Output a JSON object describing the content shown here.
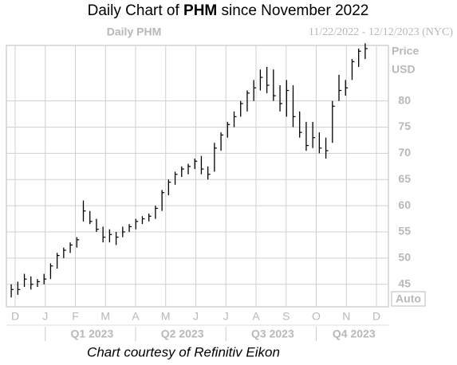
{
  "chart_data": {
    "type": "ohlc",
    "title_prefix": "Daily Chart of ",
    "ticker": "PHM",
    "title_suffix": " since November 2022",
    "panel_title": "Daily PHM",
    "date_range": "11/22/2022 - 12/12/2023 (NYC)",
    "y_label_1": "Price",
    "y_label_2": "USD",
    "scale_button": "Auto",
    "footer": "Chart courtesy of Refinitiv Eikon",
    "months": [
      "D",
      "J",
      "F",
      "M",
      "A",
      "M",
      "J",
      "J",
      "A",
      "S",
      "O",
      "N",
      "D"
    ],
    "quarters": [
      "Q1 2023",
      "Q2 2023",
      "Q3 2023",
      "Q4 2023"
    ],
    "ylim": [
      40.7,
      90.6
    ],
    "yticks": [
      45,
      50,
      55,
      60,
      65,
      70,
      75,
      80
    ],
    "grid": true,
    "color": "#000000",
    "high": [
      45,
      45.5,
      47,
      46.5,
      46,
      47,
      49,
      51,
      52,
      53,
      54,
      61,
      59,
      57.5,
      56,
      55.5,
      55,
      56,
      56.5,
      57.5,
      58,
      58.5,
      60,
      63,
      65,
      66.5,
      67.5,
      68,
      69,
      69.5,
      67.5,
      72,
      74,
      76,
      78,
      80,
      82,
      84,
      86,
      86.5,
      86,
      83,
      84,
      83,
      78,
      76,
      76,
      74,
      73,
      80,
      85,
      84,
      88,
      90,
      91
    ],
    "low": [
      42.5,
      43,
      44.5,
      44,
      44.5,
      45,
      46,
      48,
      50,
      51,
      52,
      57,
      56.5,
      55,
      53,
      53,
      52.5,
      54,
      55,
      55.5,
      56.5,
      57,
      57.5,
      59,
      62,
      64,
      65.5,
      66,
      67,
      66,
      65,
      66.5,
      70.5,
      73,
      75,
      77,
      78,
      80,
      82,
      81.5,
      80,
      78,
      77,
      75,
      73,
      70.5,
      71,
      70,
      69,
      72,
      80,
      81,
      84,
      86.5,
      88
    ],
    "close": [
      44,
      44,
      46,
      45,
      45.5,
      46,
      48.5,
      50.5,
      51.5,
      52.5,
      53.5,
      59,
      57,
      55.5,
      54,
      54.5,
      54,
      55,
      56,
      57,
      57.5,
      58,
      59.5,
      62.5,
      64.5,
      66,
      67,
      67.5,
      68.5,
      67,
      66,
      71,
      73.5,
      75.5,
      77,
      79.5,
      81.5,
      82.5,
      84.5,
      83,
      81,
      79.5,
      82,
      77,
      74,
      71.5,
      73,
      71,
      70.5,
      79,
      82,
      82.5,
      87.5,
      89.5,
      90
    ]
  }
}
